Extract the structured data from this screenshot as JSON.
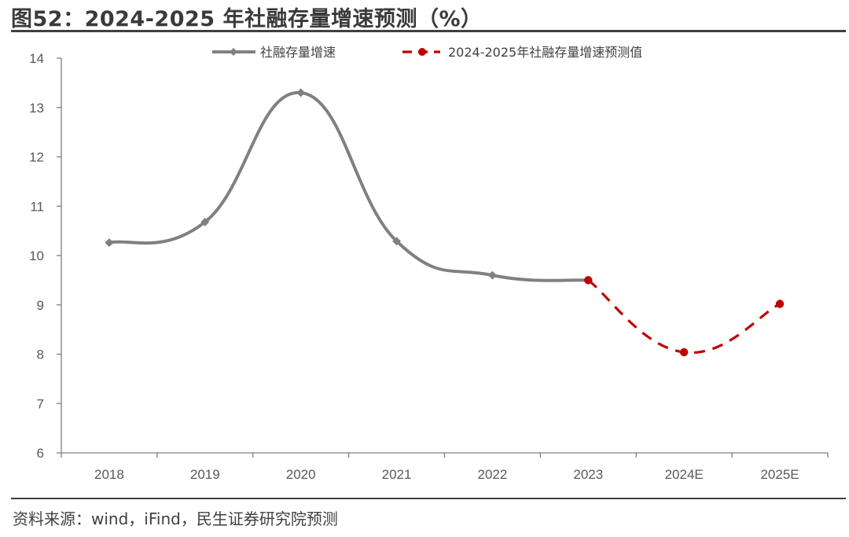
{
  "header": {
    "title": "图52：2024-2025 年社融存量增速预测（%）"
  },
  "footer": {
    "source": "资料来源：wind，iFind，民生证券研究院预测"
  },
  "colors": {
    "actual": "#808080",
    "forecast": "#c00000",
    "axis": "#7f7f7f",
    "rule": "#404040"
  },
  "chart_data": {
    "type": "line",
    "categories": [
      "2018",
      "2019",
      "2020",
      "2021",
      "2022",
      "2023",
      "2024E",
      "2025E"
    ],
    "ylim": [
      6,
      14
    ],
    "yticks": [
      6,
      7,
      8,
      9,
      10,
      11,
      12,
      13,
      14
    ],
    "grid": false,
    "legend_position": "top",
    "series": [
      {
        "name": "社融存量增速",
        "style": "solid smooth line, diamond markers",
        "values": [
          10.26,
          10.68,
          13.3,
          10.29,
          9.6,
          9.5,
          null,
          null
        ]
      },
      {
        "name": "2024-2025年社融存量增速预测值",
        "style": "dashed line, circle markers",
        "values": [
          null,
          null,
          null,
          null,
          null,
          9.5,
          8.04,
          9.02
        ]
      }
    ]
  }
}
